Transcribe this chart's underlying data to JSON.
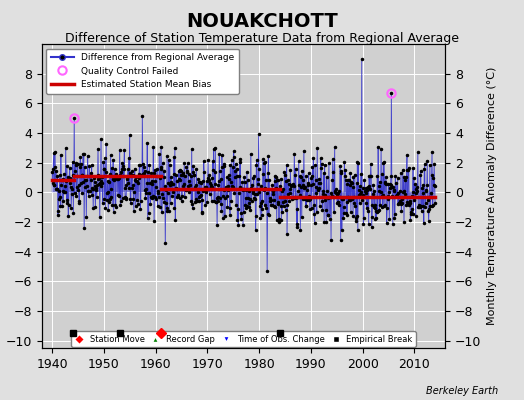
{
  "title": "NOUAKCHOTT",
  "subtitle": "Difference of Station Temperature Data from Regional Average",
  "ylabel": "Monthly Temperature Anomaly Difference (°C)",
  "xlim": [
    1938,
    2016
  ],
  "ylim": [
    -10.5,
    10
  ],
  "yticks": [
    -10,
    -8,
    -6,
    -4,
    -2,
    0,
    2,
    4,
    6,
    8
  ],
  "xticks": [
    1940,
    1950,
    1960,
    1970,
    1980,
    1990,
    2000,
    2010
  ],
  "background_color": "#e0e0e0",
  "plot_bg_color": "#d0d0d0",
  "grid_color": "#ffffff",
  "line_color": "#3333cc",
  "bias_color": "#cc0000",
  "dot_color": "#000000",
  "qc_color": "#ff66ff",
  "title_fontsize": 14,
  "subtitle_fontsize": 9,
  "tick_fontsize": 9,
  "label_fontsize": 8,
  "station_move_years": [
    1961
  ],
  "empirical_break_years": [
    1944,
    1953,
    1984
  ],
  "obs_change_years": [],
  "record_gap_years": [],
  "qc_failed_points": [
    [
      1944.25,
      5.0
    ],
    [
      2005.5,
      6.7
    ]
  ],
  "bias_segments": [
    {
      "x": [
        1940,
        1944.2
      ],
      "y": [
        0.8,
        0.8
      ]
    },
    {
      "x": [
        1944.2,
        1961
      ],
      "y": [
        1.1,
        1.1
      ]
    },
    {
      "x": [
        1961,
        1984
      ],
      "y": [
        0.2,
        0.2
      ]
    },
    {
      "x": [
        1984,
        2014
      ],
      "y": [
        -0.3,
        -0.3
      ]
    }
  ],
  "seed": 42,
  "data_start": 1940,
  "data_end": 2014,
  "watermark": "Berkeley Earth",
  "spike_up_year": 1999.8,
  "spike_up_val": 9.0,
  "spike_down_year": 1981.5,
  "spike_down_val": -5.3
}
